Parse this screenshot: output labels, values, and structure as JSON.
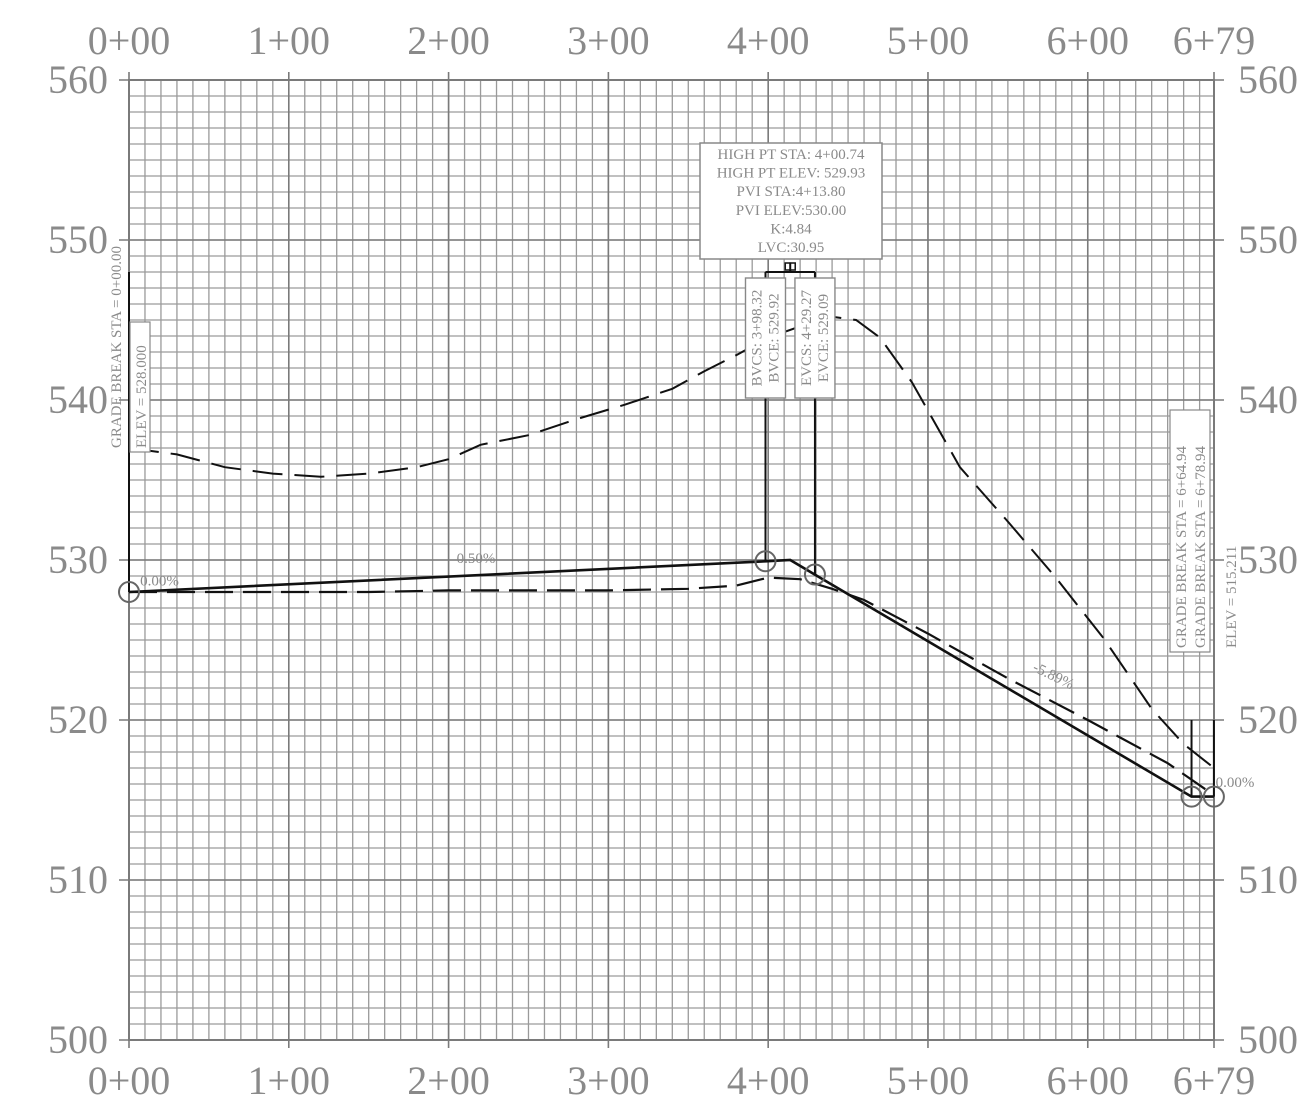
{
  "chart_data": {
    "type": "line",
    "title": "",
    "xlabel": "",
    "ylabel": "",
    "xlim": [
      0,
      679
    ],
    "ylim": [
      500,
      560
    ],
    "grid": true,
    "x_tick_values": [
      0,
      100,
      200,
      300,
      400,
      500,
      600,
      679
    ],
    "x_tick_labels": [
      "0+00",
      "1+00",
      "2+00",
      "3+00",
      "4+00",
      "5+00",
      "6+00",
      "6+79"
    ],
    "y_tick_values": [
      500,
      510,
      520,
      530,
      540,
      550,
      560
    ],
    "y_tick_labels": [
      "500",
      "510",
      "520",
      "530",
      "540",
      "550",
      "560"
    ],
    "series": [
      {
        "style": "solid",
        "color": "#111111",
        "x": [
          0,
          398.32,
          413.8,
          429.27,
          664.94,
          678.94
        ],
        "y": [
          528.0,
          529.92,
          530.0,
          529.09,
          515.21,
          515.21
        ]
      },
      {
        "style": "dashed",
        "color": "#111111",
        "x": [
          0,
          50,
          100,
          150,
          200,
          250,
          300,
          350,
          380,
          400,
          420,
          440,
          460,
          500,
          550,
          600,
          650,
          679
        ],
        "y": [
          528.0,
          528.0,
          528.0,
          528.0,
          528.1,
          528.1,
          528.1,
          528.2,
          528.4,
          528.9,
          528.8,
          528.2,
          527.5,
          525.4,
          522.6,
          520.0,
          517.3,
          515.3
        ]
      },
      {
        "style": "long-dash",
        "color": "#111111",
        "x": [
          0,
          30,
          60,
          90,
          120,
          150,
          180,
          200,
          220,
          250,
          280,
          310,
          340,
          360,
          380,
          400,
          420,
          440,
          455,
          470,
          490,
          520,
          550,
          580,
          610,
          640,
          660,
          679
        ],
        "y": [
          537.0,
          536.6,
          535.8,
          535.4,
          535.2,
          535.4,
          535.8,
          536.3,
          537.2,
          537.8,
          538.8,
          539.7,
          540.7,
          541.8,
          542.8,
          543.9,
          544.6,
          545.2,
          545.0,
          543.9,
          541.1,
          535.8,
          532.4,
          528.9,
          525.1,
          520.7,
          518.5,
          517.0
        ]
      }
    ],
    "pvi_markers": [
      {
        "x": 0,
        "y": 528.0
      },
      {
        "x": 398.32,
        "y": 529.92
      },
      {
        "x": 429.27,
        "y": 529.09
      },
      {
        "x": 664.94,
        "y": 515.21
      },
      {
        "x": 678.94,
        "y": 515.21
      }
    ],
    "grade_labels": [
      {
        "text": "0.00%",
        "x": 7,
        "y": 528.4
      },
      {
        "text": "0.50%",
        "x": 205,
        "y": 529.8
      },
      {
        "text": "-5.89%",
        "x": 565,
        "y": 523.1
      },
      {
        "text": "0.00%",
        "x": 680,
        "y": 515.8
      }
    ],
    "vc_label": {
      "lines": [
        "HIGH PT STA: 4+00.74",
        "HIGH PT ELEV: 529.93",
        "PVI STA:4+13.80",
        "PVI ELEV:530.00",
        "K:4.84",
        "LVC:30.95"
      ]
    },
    "bvc_label": {
      "lines": [
        "BVCS: 3+98.32",
        "BVCE: 529.92"
      ]
    },
    "evc_label": {
      "lines": [
        "EVCS: 4+29.27",
        "EVCE: 529.09"
      ]
    },
    "grade_break_start": {
      "lines": [
        "GRADE BREAK STA = 0+00.00",
        "ELEV = 528.000"
      ]
    },
    "grade_break_end": {
      "lines": [
        "GRADE BREAK STA = 6+64.94",
        "GRADE BREAK STA = 6+78.94",
        "ELEV = 515.211"
      ]
    }
  }
}
